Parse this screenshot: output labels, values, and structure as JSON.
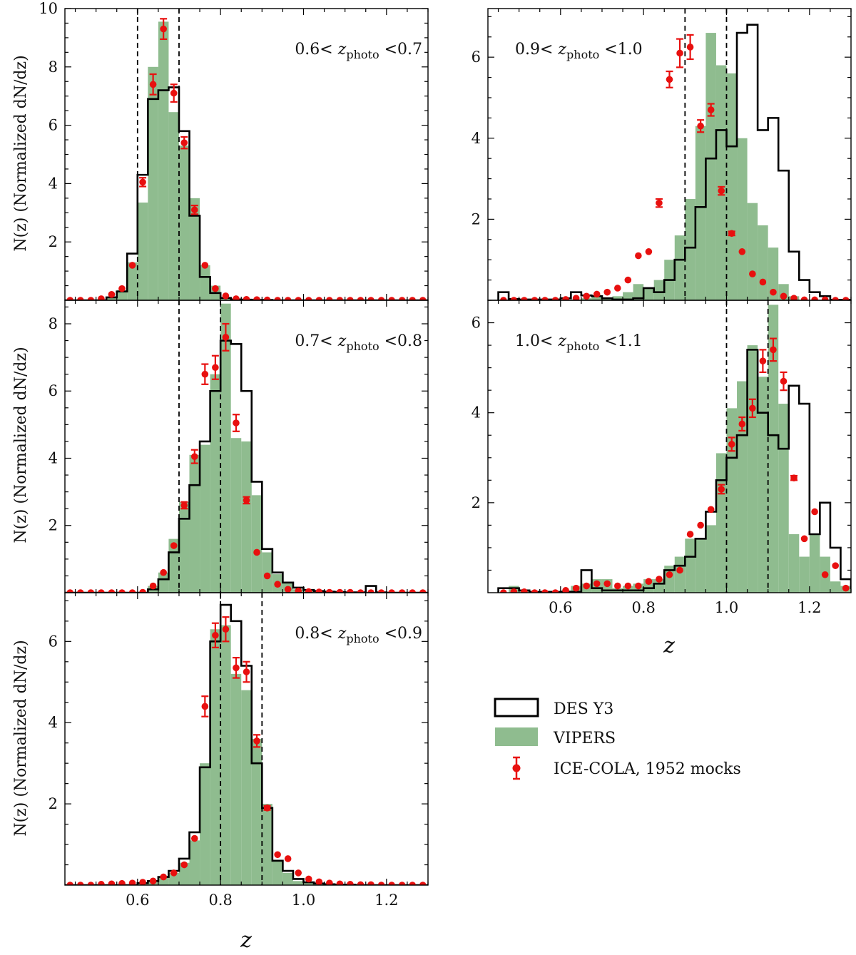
{
  "figure": {
    "ylabel": "N(z)  (Normalized dN/dz)",
    "xlabel": "z"
  },
  "colors": {
    "des_y3": "#000000",
    "vipers": "#8fbc8f",
    "icecola": "#e8100f",
    "binedge": "#000000"
  },
  "legend": {
    "items": [
      {
        "key": "des_y3",
        "label": "DES Y3",
        "style": "outline-box"
      },
      {
        "key": "vipers",
        "label": "VIPERS",
        "style": "filled-box"
      },
      {
        "key": "icecola",
        "label": "ICE-COLA, 1952 mocks",
        "style": "errorbar-point"
      }
    ]
  },
  "chart_data": [
    {
      "type": "bar",
      "panel": "0.6-0.7",
      "annotation": "0.6< z_photo <0.7",
      "zphoto_range": [
        0.6,
        0.7
      ],
      "bin_start": 0.425,
      "bin_width": 0.025,
      "xlim": [
        0.425,
        1.3
      ],
      "ylim": [
        0,
        10
      ],
      "xticks": [
        0.6,
        0.8,
        1.0,
        1.2
      ],
      "yticks": [
        2,
        4,
        6,
        8,
        10
      ],
      "show_xticklabels": false,
      "series": [
        {
          "name": "DES Y3",
          "style": "step",
          "values": [
            0,
            0,
            0,
            0,
            0.1,
            0.3,
            1.6,
            4.3,
            6.9,
            7.2,
            7.3,
            5.8,
            2.9,
            0.8,
            0.25,
            0.08,
            0.03,
            0.02,
            0.01,
            0.01,
            0,
            0,
            0,
            0,
            0,
            0,
            0,
            0,
            0,
            0,
            0,
            0,
            0,
            0,
            0
          ]
        },
        {
          "name": "VIPERS",
          "style": "bar",
          "values": [
            0,
            0,
            0,
            0,
            0.1,
            0.35,
            1.3,
            3.35,
            8.0,
            9.55,
            6.45,
            5.3,
            3.5,
            1.2,
            0.5,
            0.1,
            0.05,
            0.02,
            0.01,
            0,
            0,
            0,
            0,
            0,
            0,
            0,
            0,
            0,
            0,
            0,
            0,
            0,
            0,
            0,
            0
          ]
        },
        {
          "name": "ICE-COLA, 1952 mocks",
          "style": "errorbar",
          "values": [
            0,
            0,
            0,
            0.05,
            0.2,
            0.4,
            1.2,
            4.05,
            7.4,
            9.3,
            7.1,
            5.4,
            3.1,
            1.2,
            0.4,
            0.15,
            0.05,
            0.03,
            0.02,
            0.01,
            0,
            0,
            0,
            0,
            0,
            0,
            0,
            0,
            0,
            0,
            0,
            0,
            0,
            0,
            0
          ],
          "errors": [
            0,
            0,
            0,
            0,
            0,
            0,
            0,
            0.15,
            0.35,
            0.35,
            0.3,
            0.2,
            0.15,
            0,
            0,
            0,
            0,
            0,
            0,
            0,
            0,
            0,
            0,
            0,
            0,
            0,
            0,
            0,
            0,
            0,
            0,
            0,
            0,
            0,
            0
          ]
        }
      ]
    },
    {
      "type": "bar",
      "panel": "0.7-0.8",
      "annotation": "0.7< z_photo <0.8",
      "zphoto_range": [
        0.7,
        0.8
      ],
      "bin_start": 0.425,
      "bin_width": 0.025,
      "xlim": [
        0.425,
        1.3
      ],
      "ylim": [
        0,
        8.7
      ],
      "xticks": [
        0.6,
        0.8,
        1.0,
        1.2
      ],
      "yticks": [
        2,
        4,
        6,
        8
      ],
      "show_xticklabels": false,
      "series": [
        {
          "name": "DES Y3",
          "style": "step",
          "values": [
            0,
            0,
            0,
            0,
            0,
            0,
            0,
            0,
            0.1,
            0.4,
            1.2,
            2.2,
            3.2,
            4.5,
            6.0,
            7.5,
            7.4,
            6.0,
            3.3,
            1.3,
            0.6,
            0.3,
            0.15,
            0.08,
            0.05,
            0.03,
            0.02,
            0.01,
            0.01,
            0.2,
            0.01,
            0,
            0,
            0,
            0
          ]
        },
        {
          "name": "VIPERS",
          "style": "bar",
          "values": [
            0,
            0,
            0,
            0,
            0,
            0,
            0,
            0,
            0.2,
            0.6,
            1.6,
            2.7,
            4.1,
            4.4,
            6.5,
            8.6,
            4.6,
            4.5,
            2.9,
            1.2,
            0.55,
            0.3,
            0.1,
            0.05,
            0.03,
            0.02,
            0.01,
            0,
            0,
            0,
            0,
            0,
            0,
            0,
            0
          ]
        },
        {
          "name": "ICE-COLA, 1952 mocks",
          "style": "errorbar",
          "values": [
            0,
            0,
            0,
            0,
            0,
            0,
            0,
            0.01,
            0.2,
            0.6,
            1.4,
            2.6,
            4.05,
            6.5,
            6.7,
            7.6,
            5.05,
            2.75,
            1.2,
            0.5,
            0.25,
            0.1,
            0.05,
            0.03,
            0.02,
            0.01,
            0.01,
            0.01,
            0,
            0,
            0,
            0,
            0,
            0,
            0
          ],
          "errors": [
            0,
            0,
            0,
            0,
            0,
            0,
            0,
            0,
            0,
            0,
            0,
            0.1,
            0.2,
            0.3,
            0.35,
            0.4,
            0.25,
            0.1,
            0,
            0,
            0,
            0,
            0,
            0,
            0,
            0,
            0,
            0,
            0,
            0,
            0,
            0,
            0,
            0,
            0
          ]
        }
      ]
    },
    {
      "type": "bar",
      "panel": "0.8-0.9",
      "annotation": "0.8< z_photo <0.9",
      "zphoto_range": [
        0.8,
        0.9
      ],
      "bin_start": 0.425,
      "bin_width": 0.025,
      "xlim": [
        0.425,
        1.3
      ],
      "ylim": [
        0,
        7.2
      ],
      "xticks": [
        0.6,
        0.8,
        1.0,
        1.2
      ],
      "yticks": [
        2,
        4,
        6
      ],
      "show_xticklabels": true,
      "series": [
        {
          "name": "DES Y3",
          "style": "step",
          "values": [
            0,
            0,
            0,
            0,
            0,
            0,
            0,
            0.05,
            0.1,
            0.2,
            0.35,
            0.65,
            1.3,
            2.9,
            6.0,
            6.9,
            6.5,
            5.4,
            3.0,
            1.9,
            0.6,
            0.35,
            0.15,
            0.07,
            0.04,
            0.02,
            0.01,
            0.01,
            0,
            0,
            0,
            0,
            0,
            0,
            0
          ]
        },
        {
          "name": "VIPERS",
          "style": "bar",
          "values": [
            0,
            0,
            0,
            0,
            0,
            0,
            0,
            0.05,
            0.1,
            0.2,
            0.3,
            0.55,
            1.1,
            3.0,
            6.3,
            6.4,
            5.2,
            4.8,
            3.6,
            2.0,
            0.6,
            0.3,
            0.1,
            0.05,
            0.02,
            0.01,
            0,
            0,
            0,
            0,
            0,
            0,
            0,
            0,
            0
          ]
        },
        {
          "name": "ICE-COLA, 1952 mocks",
          "style": "errorbar",
          "values": [
            0,
            0,
            0,
            0.02,
            0.03,
            0.04,
            0.05,
            0.07,
            0.1,
            0.2,
            0.3,
            0.5,
            1.15,
            4.4,
            6.15,
            6.3,
            5.35,
            5.25,
            3.55,
            1.9,
            0.75,
            0.65,
            0.3,
            0.15,
            0.08,
            0.05,
            0.03,
            0.02,
            0.01,
            0.01,
            0,
            0,
            0,
            0,
            0
          ],
          "errors": [
            0,
            0,
            0,
            0,
            0,
            0,
            0,
            0,
            0,
            0,
            0,
            0,
            0,
            0.25,
            0.3,
            0.3,
            0.25,
            0.25,
            0.15,
            0.05,
            0,
            0,
            0,
            0,
            0,
            0,
            0,
            0,
            0,
            0,
            0,
            0,
            0,
            0,
            0
          ]
        }
      ]
    },
    {
      "type": "bar",
      "panel": "0.9-1.0",
      "annotation": "0.9< z_photo <1.0",
      "zphoto_range": [
        0.9,
        1.0
      ],
      "bin_start": 0.45,
      "bin_width": 0.025,
      "xlim": [
        0.425,
        1.3
      ],
      "ylim": [
        0,
        7.2
      ],
      "xticks": [
        0.6,
        0.8,
        1.0,
        1.2
      ],
      "yticks": [
        2,
        4,
        6
      ],
      "show_xticklabels": false,
      "series": [
        {
          "name": "DES Y3",
          "style": "step",
          "values": [
            0.2,
            0.03,
            0.02,
            0.02,
            0.02,
            0.02,
            0.05,
            0.2,
            0.12,
            0.1,
            0.05,
            0.02,
            0.02,
            0.05,
            0.3,
            0.2,
            0.5,
            1.0,
            1.3,
            2.3,
            3.5,
            4.2,
            3.8,
            6.6,
            6.8,
            4.2,
            4.5,
            3.2,
            1.2,
            0.5,
            0.2,
            0.1,
            0.01,
            0.01,
            0
          ]
        },
        {
          "name": "VIPERS",
          "style": "bar",
          "values": [
            0,
            0,
            0,
            0,
            0,
            0,
            0.01,
            0.02,
            0.05,
            0.1,
            0.05,
            0.1,
            0.2,
            0.4,
            0.3,
            0.5,
            1.0,
            1.6,
            2.5,
            4.3,
            6.6,
            5.8,
            5.6,
            4.0,
            2.4,
            1.85,
            1.3,
            0.4,
            0.1,
            0,
            0,
            0,
            0,
            0,
            0
          ]
        },
        {
          "name": "ICE-COLA, 1952 mocks",
          "style": "errorbar",
          "values": [
            0,
            0,
            0,
            0,
            0,
            0,
            0.02,
            0.05,
            0.1,
            0.15,
            0.2,
            0.3,
            0.5,
            1.1,
            1.2,
            2.4,
            5.45,
            6.1,
            6.25,
            4.3,
            4.7,
            2.7,
            1.65,
            1.2,
            0.65,
            0.45,
            0.2,
            0.1,
            0.05,
            0.01,
            0.01,
            0.01,
            0,
            0,
            0
          ],
          "errors": [
            0,
            0,
            0,
            0,
            0,
            0,
            0,
            0,
            0,
            0,
            0,
            0,
            0,
            0,
            0,
            0.1,
            0.2,
            0.35,
            0.3,
            0.15,
            0.15,
            0.1,
            0.05,
            0,
            0,
            0,
            0,
            0,
            0,
            0,
            0,
            0,
            0,
            0,
            0
          ],
          "x_centers_override": null
        }
      ]
    },
    {
      "type": "bar",
      "panel": "1.0-1.1",
      "annotation": "1.0< z_photo <1.1",
      "zphoto_range": [
        1.0,
        1.1
      ],
      "bin_start": 0.45,
      "bin_width": 0.025,
      "xlim": [
        0.425,
        1.3
      ],
      "ylim": [
        0,
        6.5
      ],
      "xticks": [
        0.6,
        0.8,
        1.0,
        1.2
      ],
      "yticks": [
        2,
        4,
        6
      ],
      "show_xticklabels": true,
      "series": [
        {
          "name": "DES Y3",
          "style": "step",
          "values": [
            0.1,
            0.1,
            0.05,
            0.02,
            0.02,
            0.02,
            0.02,
            0.02,
            0.5,
            0.1,
            0.05,
            0.05,
            0.05,
            0.05,
            0.1,
            0.2,
            0.5,
            0.6,
            0.8,
            1.2,
            1.8,
            2.5,
            3.0,
            3.5,
            5.4,
            4.0,
            3.5,
            3.2,
            4.6,
            4.2,
            1.3,
            2.0,
            1.0,
            0.3,
            0.1
          ]
        },
        {
          "name": "VIPERS",
          "style": "bar",
          "values": [
            0,
            0.15,
            0.05,
            0,
            0,
            0,
            0.05,
            0.15,
            0.2,
            0.3,
            0.3,
            0.1,
            0.15,
            0.2,
            0.3,
            0.3,
            0.6,
            0.8,
            1.2,
            1.2,
            1.5,
            3.1,
            4.1,
            4.7,
            5.5,
            4.8,
            6.4,
            4.2,
            1.3,
            0.8,
            1.3,
            0.8,
            0.25,
            0.15,
            0.1
          ]
        },
        {
          "name": "ICE-COLA, 1952 mocks",
          "style": "errorbar",
          "values": [
            0,
            0.02,
            0.02,
            0,
            0,
            0,
            0.05,
            0.1,
            0.15,
            0.2,
            0.2,
            0.15,
            0.15,
            0.15,
            0.25,
            0.3,
            0.4,
            0.5,
            1.3,
            1.5,
            1.85,
            2.3,
            3.3,
            3.75,
            4.1,
            5.15,
            5.4,
            4.7,
            2.55,
            1.2,
            1.8,
            0.4,
            0.6,
            0.1,
            0.05
          ],
          "errors": [
            0,
            0,
            0,
            0,
            0,
            0,
            0,
            0,
            0,
            0,
            0,
            0,
            0,
            0,
            0,
            0,
            0,
            0,
            0,
            0,
            0,
            0.1,
            0.15,
            0.15,
            0.2,
            0.25,
            0.25,
            0.2,
            0.05,
            0,
            0,
            0,
            0,
            0,
            0
          ]
        }
      ]
    }
  ]
}
